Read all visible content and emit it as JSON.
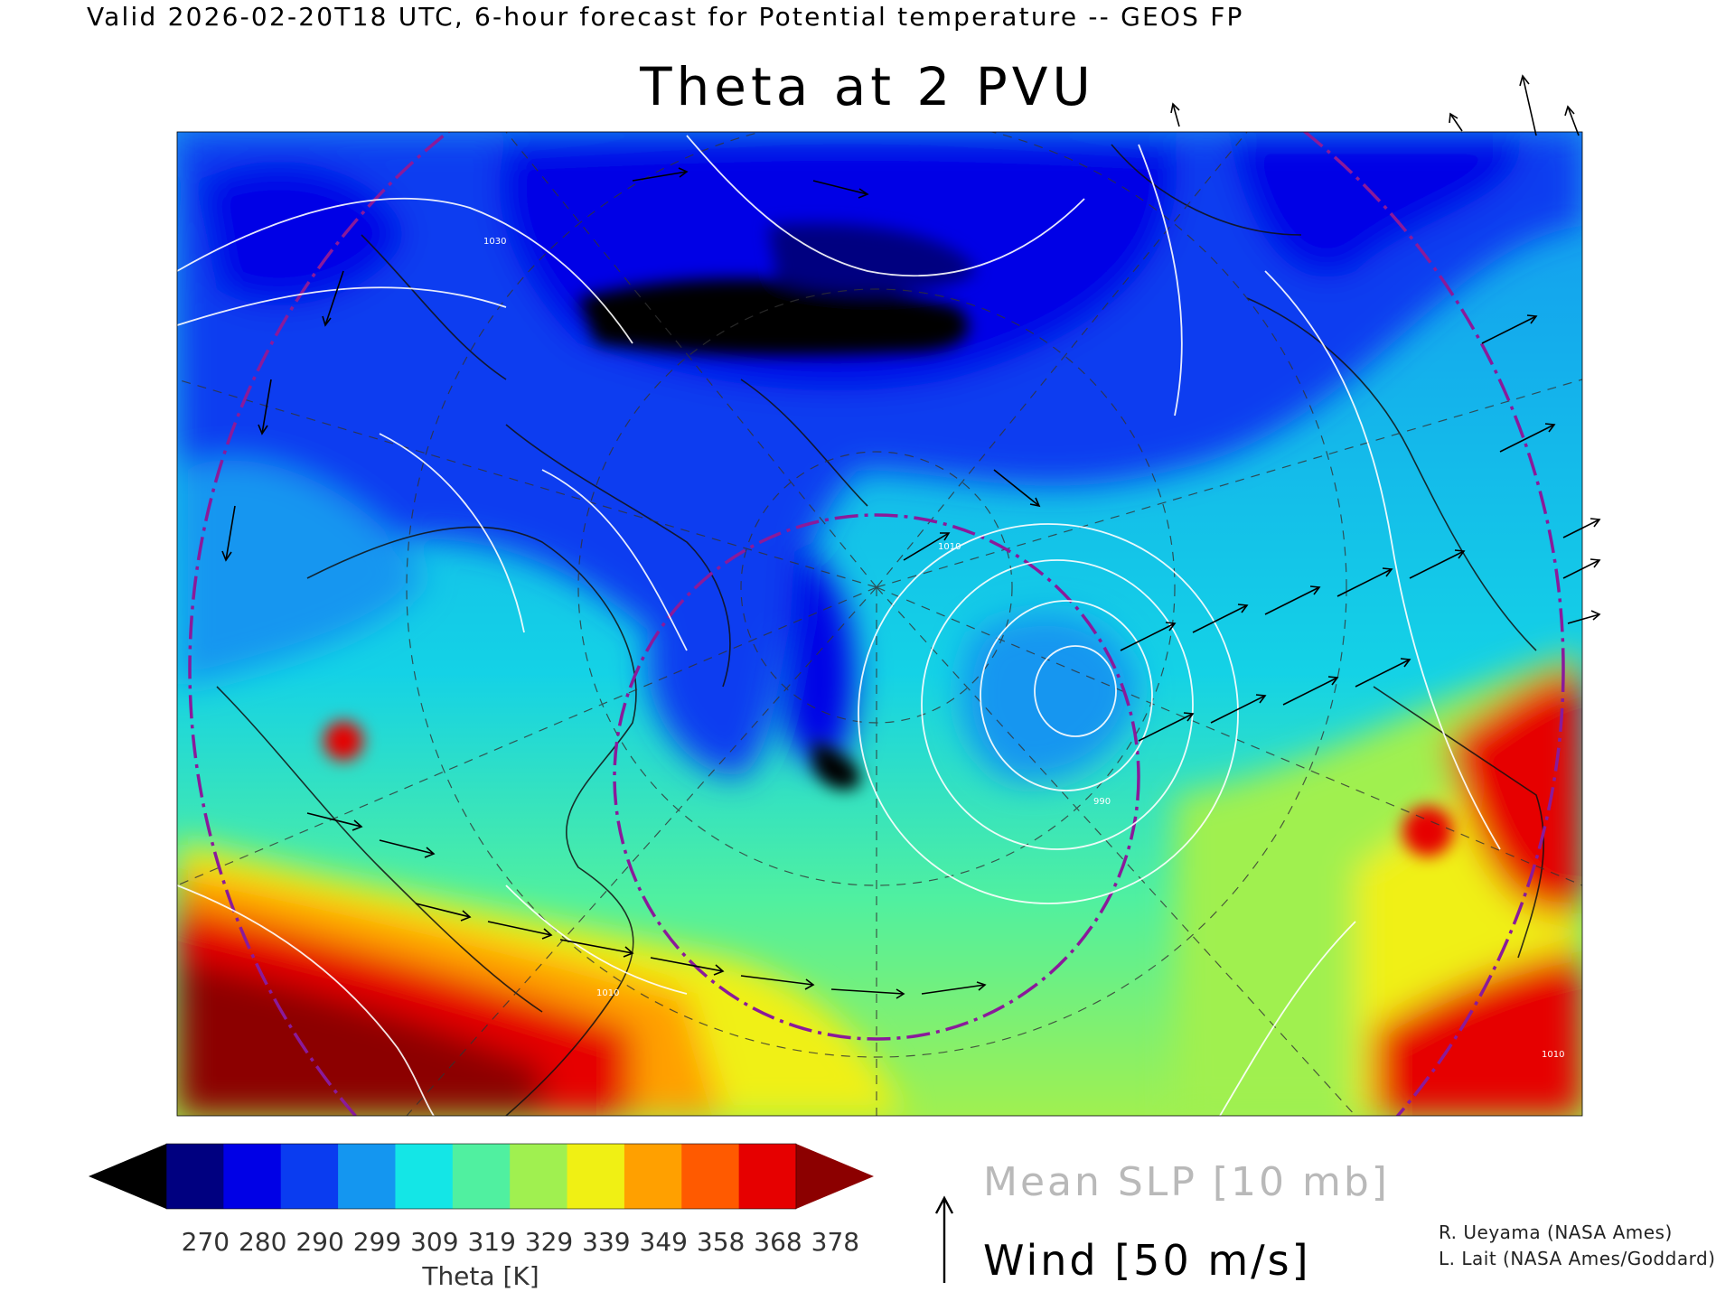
{
  "header": "Valid 2026-02-20T18 UTC, 6-hour forecast for Potential temperature -- GEOS FP",
  "title": "Theta at 2 PVU",
  "colorbar": {
    "ticks": [
      "270",
      "280",
      "290",
      "299",
      "309",
      "319",
      "329",
      "339",
      "349",
      "358",
      "368",
      "378"
    ],
    "label": "Theta [K]",
    "colors": [
      "#000000",
      "#000080",
      "#0000e6",
      "#0a3cf0",
      "#1496f0",
      "#14e6e6",
      "#50f0a0",
      "#a0f050",
      "#f0f014",
      "#ffa000",
      "#ff5a00",
      "#e60000",
      "#8c0000"
    ]
  },
  "slp_label": "Mean SLP [10 mb]",
  "wind_label": "Wind [50 m/s]",
  "credits": [
    "R. Ueyama (NASA Ames)",
    "L. Lait (NASA Ames/Goddard)"
  ],
  "contour_labels": [
    "1030",
    "1010",
    "1010",
    "990",
    "1010",
    "1010",
    "1010"
  ],
  "legend_colors": {
    "slp_contour": "#ffffff",
    "wind_arrow": "#000000",
    "dashed_circle": "#8a1a9a",
    "coastline": "#111111"
  },
  "icons": [
    "wind-scale-arrow-icon",
    "colorbar-low-triangle",
    "colorbar-high-triangle"
  ]
}
